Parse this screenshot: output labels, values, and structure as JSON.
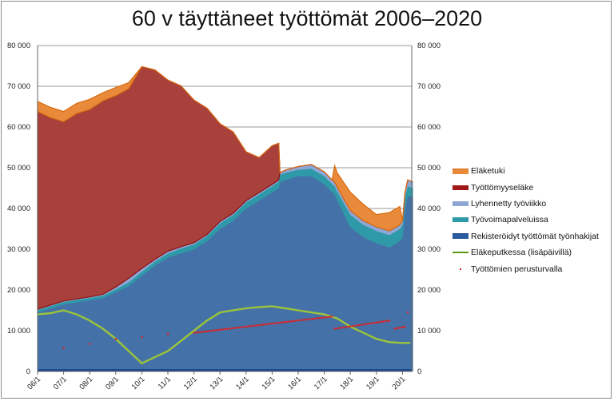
{
  "chart_data": {
    "type": "area",
    "title": "60 v täyttäneet työttömät 2006–2020",
    "xlabel": "",
    "ylabel": "",
    "ylim": [
      0,
      80000
    ],
    "x_unit": "years since Jan 2006",
    "yticks": [
      "0",
      "10 000",
      "20 000",
      "30 000",
      "40 000",
      "50 000",
      "60 000",
      "70 000",
      "80 000"
    ],
    "xticks": [
      "06/1",
      "07/1",
      "08/1",
      "09/1",
      "10/1",
      "11/1",
      "12/1",
      "13/1",
      "14/1",
      "15/1",
      "16/1",
      "17/1",
      "18/1",
      "19/1",
      "20/1"
    ],
    "grid": true,
    "legend_position": "right",
    "stack_x": [
      0,
      0.5,
      1,
      1.5,
      2,
      2.5,
      3,
      3.5,
      4,
      4.5,
      5,
      5.5,
      6,
      6.5,
      7,
      7.5,
      8,
      8.5,
      9,
      9.25,
      9.3,
      9.5,
      10,
      10.5,
      11,
      11.3,
      11.4,
      11.5,
      12,
      12.5,
      13,
      13.5,
      13.9,
      14,
      14.1,
      14.2,
      14.4
    ],
    "series": [
      {
        "name": "Rekisteröidyt työttömät työnhakijat",
        "color": "#4472a8",
        "values": [
          14500,
          15500,
          16500,
          17000,
          17500,
          18000,
          19500,
          21000,
          23500,
          26000,
          28000,
          29000,
          30000,
          32000,
          35000,
          37000,
          40000,
          42000,
          44000,
          45000,
          46500,
          47000,
          48000,
          48000,
          46000,
          44000,
          43500,
          42000,
          35500,
          33000,
          31500,
          30500,
          32000,
          33000,
          40000,
          43000,
          43000
        ]
      },
      {
        "name": "Työvoimapalveluissa",
        "color": "#2e9aa8",
        "values": [
          600,
          600,
          600,
          600,
          600,
          600,
          700,
          900,
          1000,
          1000,
          1000,
          1200,
          1200,
          1300,
          1400,
          1400,
          1500,
          1500,
          1500,
          1600,
          1800,
          1800,
          1500,
          1800,
          2000,
          2000,
          2000,
          2200,
          3000,
          3000,
          3000,
          3000,
          3000,
          3000,
          3000,
          2500,
          2000
        ]
      },
      {
        "name": "Lyhennetty työviikko",
        "color": "#8ea6d6",
        "values": [
          200,
          200,
          200,
          200,
          200,
          300,
          500,
          1000,
          800,
          500,
          500,
          400,
          400,
          300,
          400,
          400,
          400,
          400,
          400,
          400,
          500,
          600,
          800,
          1000,
          1000,
          1000,
          1000,
          1000,
          1000,
          1000,
          1000,
          1000,
          1000,
          1000,
          1000,
          1500,
          1500
        ]
      },
      {
        "name": "Työttömyyseläke",
        "color": "#a8403c",
        "edge": "#8b1010",
        "values": [
          48500,
          46000,
          44000,
          45500,
          46000,
          47500,
          47000,
          46500,
          49500,
          46500,
          42000,
          39500,
          35000,
          31000,
          24000,
          20000,
          12000,
          8600,
          9500,
          9000,
          0,
          0,
          0,
          0,
          0,
          0,
          0,
          0,
          0,
          0,
          0,
          0,
          0,
          0,
          0,
          0,
          0
        ]
      },
      {
        "name": "Eläketuki",
        "color": "#e88a3a",
        "edge": "#d86a10",
        "values": [
          2500,
          2500,
          2500,
          2500,
          2500,
          2000,
          2000,
          1500,
          0,
          0,
          0,
          0,
          0,
          0,
          0,
          0,
          0,
          0,
          0,
          0,
          0,
          0,
          0,
          0,
          0,
          0,
          4000,
          3500,
          4500,
          4000,
          3000,
          4500,
          4500,
          0,
          0,
          0,
          0
        ]
      }
    ],
    "line": {
      "name": "Eläkeputkessa (lisäpäivillä)",
      "color": "#9cc43a",
      "x": [
        0,
        0.5,
        1,
        1.5,
        2,
        2.5,
        3,
        3.5,
        4,
        4.5,
        5,
        5.5,
        6,
        6.5,
        7,
        7.5,
        8,
        8.5,
        9,
        9.5,
        10,
        10.5,
        11,
        11.5,
        12,
        12.5,
        13,
        13.5,
        14,
        14.3
      ],
      "values": [
        14000,
        14300,
        15000,
        14000,
        12500,
        10500,
        8000,
        5000,
        2000,
        3500,
        5000,
        7500,
        10000,
        12500,
        14500,
        15000,
        15500,
        15800,
        16000,
        15500,
        15000,
        14500,
        14000,
        13000,
        11000,
        9500,
        8000,
        7200,
        7000,
        7000
      ]
    },
    "dots": {
      "name": "Työttömien perusturvalla",
      "color": "#e02020",
      "points": [
        [
          1,
          5800
        ],
        [
          2,
          6800
        ],
        [
          3,
          8000
        ],
        [
          4,
          8500
        ],
        [
          5,
          9200
        ]
      ],
      "monthly_runs": [
        {
          "x": [
            6,
            11.3
          ],
          "y": [
            9500,
            13500
          ]
        },
        {
          "x": [
            11.4,
            13.5
          ],
          "y": [
            10500,
            12500
          ]
        },
        {
          "x": [
            13.7,
            14.1
          ],
          "y": [
            10500,
            11000
          ]
        },
        {
          "x": [
            14.2,
            14.2
          ],
          "y": [
            14500,
            14500
          ]
        }
      ]
    }
  },
  "legend": [
    "Eläketuki",
    "Työttömyyseläke",
    "Lyhennetty työviikko",
    "Työvoimapalveluissa",
    "Rekisteröidyt työttömät työnhakijat",
    "Eläkeputkessa (lisäpäivillä)",
    "Työttömien perusturvalla"
  ]
}
